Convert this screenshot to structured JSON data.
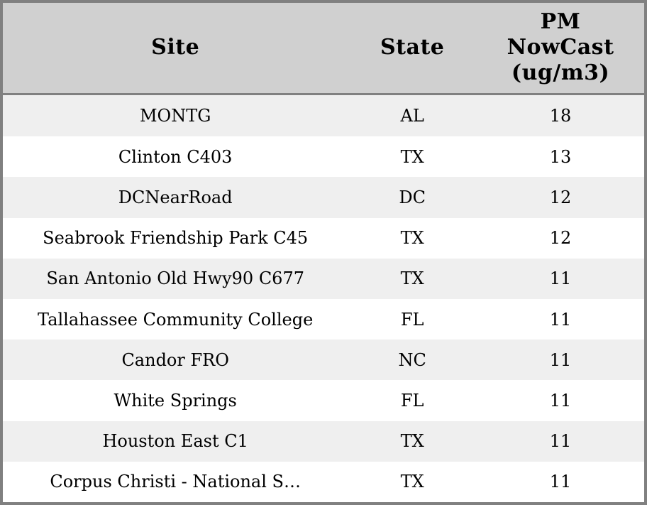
{
  "table": {
    "columns": [
      {
        "key": "site",
        "label": "Site"
      },
      {
        "key": "state",
        "label": "State"
      },
      {
        "key": "pm",
        "label": "PM\nNowCast\n(ug/m3)"
      }
    ],
    "rows": [
      {
        "site": "MONTG",
        "state": "AL",
        "pm": "18"
      },
      {
        "site": "Clinton C403",
        "state": "TX",
        "pm": "13"
      },
      {
        "site": "DCNearRoad",
        "state": "DC",
        "pm": "12"
      },
      {
        "site": "Seabrook Friendship Park C45",
        "state": "TX",
        "pm": "12"
      },
      {
        "site": "San Antonio Old Hwy90 C677",
        "state": "TX",
        "pm": "11"
      },
      {
        "site": "Tallahassee Community College",
        "state": "FL",
        "pm": "11"
      },
      {
        "site": "Candor FRO",
        "state": "NC",
        "pm": "11"
      },
      {
        "site": "White Springs",
        "state": "FL",
        "pm": "11"
      },
      {
        "site": "Houston East C1",
        "state": "TX",
        "pm": "11"
      },
      {
        "site": "Corpus Christi - National S…",
        "state": "TX",
        "pm": "11"
      }
    ]
  },
  "colors": {
    "header_bg": "#d0d0d0",
    "stripe_bg": "#efefef",
    "row_bg": "#ffffff",
    "border": "#808080",
    "text": "#000000"
  }
}
